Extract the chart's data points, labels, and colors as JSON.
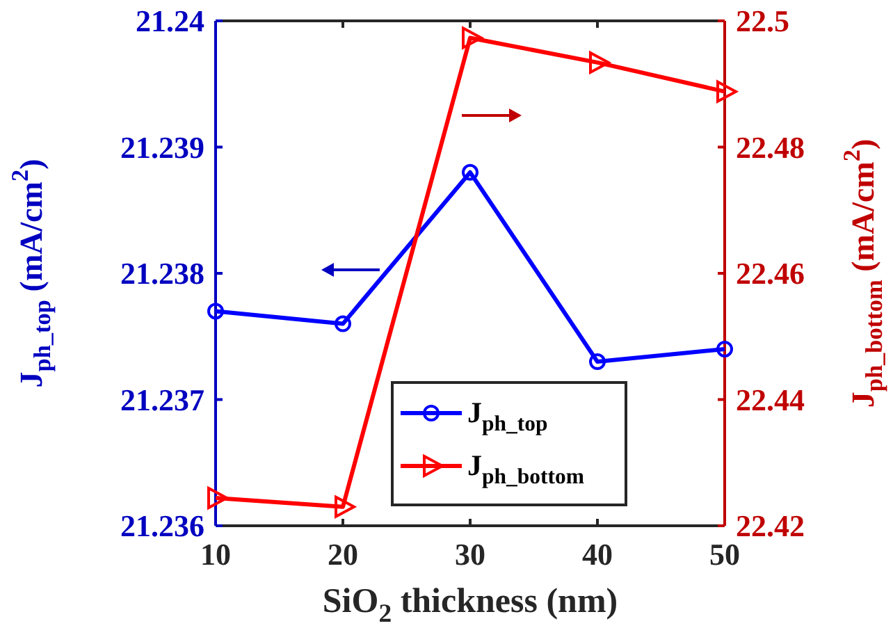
{
  "chart_data": {
    "type": "line",
    "x": [
      10,
      20,
      30,
      40,
      50
    ],
    "xlabel": "SiO$_{2}$ thickness (nm)",
    "ylabel": "J$_{ph_top}$ (mA/cm$^{2}$)",
    "y2label": "J$_{ph_bottom}$ (mA/cm$^{2}$)",
    "xlim": [
      10,
      50
    ],
    "xticks": [
      10,
      20,
      30,
      40,
      50
    ],
    "ylim": [
      21.236,
      21.24
    ],
    "yticks": [
      21.236,
      21.237,
      21.238,
      21.239,
      21.24
    ],
    "y2lim": [
      22.42,
      22.5
    ],
    "y2ticks": [
      22.42,
      22.44,
      22.46,
      22.48,
      22.5
    ],
    "series": [
      {
        "name": "J$_{ph_top}$",
        "color": "#0000ff",
        "marker": "circle",
        "values": [
          21.2377,
          21.2376,
          21.2388,
          21.2373,
          21.2374
        ]
      },
      {
        "name": "J$_{ph_bottom}$",
        "color": "#ff0000",
        "marker": "triangle",
        "axis": "y2",
        "values": [
          22.4244,
          22.423,
          22.4973,
          22.4934,
          22.4888
        ]
      }
    ],
    "legend": "bottom",
    "grid": false
  }
}
